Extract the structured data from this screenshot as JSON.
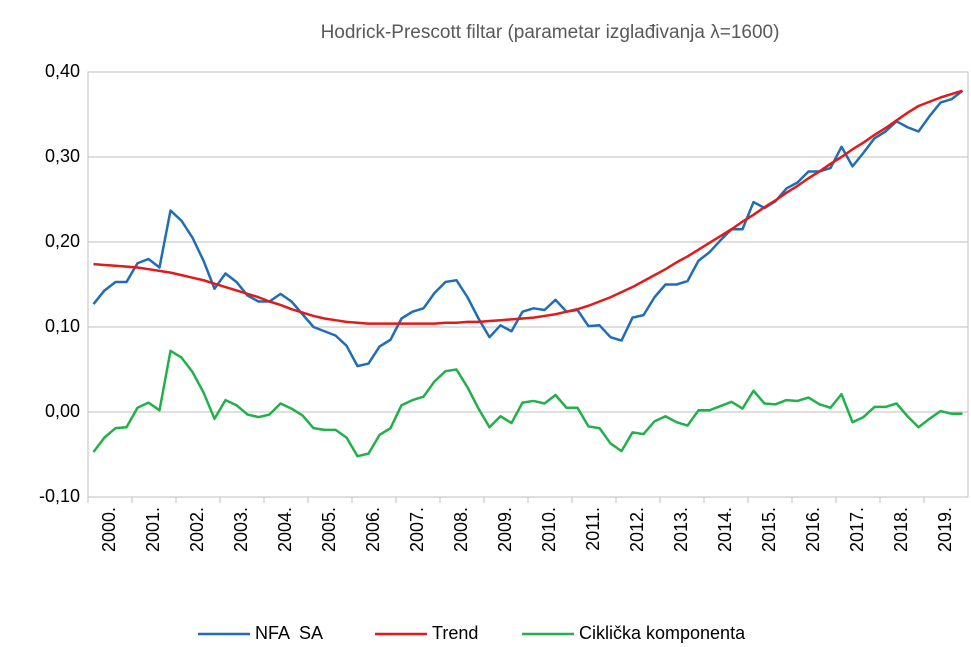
{
  "chart_data": {
    "type": "line",
    "title": "Hodrick-Prescott filtar (parametar izglađivanja λ=1600)",
    "categories": [
      "2000.",
      null,
      null,
      null,
      "2001.",
      null,
      null,
      null,
      "2002.",
      null,
      null,
      null,
      "2003.",
      null,
      null,
      null,
      "2004.",
      null,
      null,
      null,
      "2005.",
      null,
      null,
      null,
      "2006.",
      null,
      null,
      null,
      "2007.",
      null,
      null,
      null,
      "2008.",
      null,
      null,
      null,
      "2009.",
      null,
      null,
      null,
      "2010.",
      null,
      null,
      null,
      "2011.",
      null,
      null,
      null,
      "2012.",
      null,
      null,
      null,
      "2013.",
      null,
      null,
      null,
      "2014.",
      null,
      null,
      null,
      "2015.",
      null,
      null,
      null,
      "2016.",
      null,
      null,
      null,
      "2017.",
      null,
      null,
      null,
      "2018.",
      null,
      null,
      null,
      "2019.",
      null,
      null,
      null
    ],
    "series": [
      {
        "name": "NFA  SA",
        "color": "#1f6db5",
        "values": [
          0.127,
          0.143,
          0.153,
          0.153,
          0.175,
          0.18,
          0.17,
          0.237,
          0.225,
          0.205,
          0.178,
          0.145,
          0.163,
          0.153,
          0.137,
          0.13,
          0.13,
          0.139,
          0.13,
          0.115,
          0.1,
          0.095,
          0.09,
          0.078,
          0.054,
          0.057,
          0.077,
          0.085,
          0.11,
          0.118,
          0.122,
          0.14,
          0.153,
          0.155,
          0.135,
          0.11,
          0.088,
          0.102,
          0.095,
          0.118,
          0.122,
          0.12,
          0.132,
          0.118,
          0.12,
          0.101,
          0.102,
          0.088,
          0.084,
          0.111,
          0.114,
          0.135,
          0.15,
          0.15,
          0.154,
          0.178,
          0.188,
          0.202,
          0.215,
          0.215,
          0.247,
          0.24,
          0.248,
          0.263,
          0.27,
          0.283,
          0.283,
          0.287,
          0.312,
          0.289,
          0.305,
          0.322,
          0.33,
          0.342,
          0.335,
          0.33,
          0.348,
          0.364,
          0.368,
          0.378
        ]
      },
      {
        "name": "Trend",
        "color": "#e01b1b",
        "values": [
          0.174,
          0.173,
          0.172,
          0.171,
          0.17,
          0.168,
          0.166,
          0.164,
          0.161,
          0.158,
          0.155,
          0.151,
          0.147,
          0.143,
          0.139,
          0.135,
          0.13,
          0.126,
          0.121,
          0.117,
          0.113,
          0.11,
          0.108,
          0.106,
          0.105,
          0.104,
          0.104,
          0.104,
          0.104,
          0.104,
          0.104,
          0.104,
          0.105,
          0.105,
          0.106,
          0.106,
          0.107,
          0.108,
          0.109,
          0.11,
          0.111,
          0.113,
          0.115,
          0.118,
          0.121,
          0.125,
          0.13,
          0.135,
          0.141,
          0.147,
          0.154,
          0.161,
          0.168,
          0.176,
          0.183,
          0.191,
          0.199,
          0.207,
          0.215,
          0.224,
          0.232,
          0.241,
          0.249,
          0.258,
          0.266,
          0.275,
          0.283,
          0.292,
          0.3,
          0.309,
          0.317,
          0.326,
          0.334,
          0.343,
          0.352,
          0.36,
          0.365,
          0.37,
          0.374,
          0.378
        ]
      },
      {
        "name": "Ciklička komponenta",
        "color": "#22b04b",
        "values": [
          -0.047,
          -0.03,
          -0.019,
          -0.018,
          0.005,
          0.011,
          0.002,
          0.072,
          0.064,
          0.047,
          0.023,
          -0.008,
          0.014,
          0.008,
          -0.003,
          -0.006,
          -0.003,
          0.01,
          0.004,
          -0.004,
          -0.019,
          -0.021,
          -0.021,
          -0.03,
          -0.052,
          -0.049,
          -0.027,
          -0.019,
          0.008,
          0.014,
          0.018,
          0.036,
          0.048,
          0.05,
          0.029,
          0.004,
          -0.018,
          -0.005,
          -0.013,
          0.011,
          0.013,
          0.01,
          0.02,
          0.005,
          0.005,
          -0.017,
          -0.019,
          -0.037,
          -0.046,
          -0.024,
          -0.026,
          -0.011,
          -0.005,
          -0.012,
          -0.016,
          0.002,
          0.002,
          0.007,
          0.012,
          0.004,
          0.025,
          0.01,
          0.009,
          0.014,
          0.013,
          0.017,
          0.009,
          0.005,
          0.021,
          -0.012,
          -0.006,
          0.006,
          0.006,
          0.01,
          -0.005,
          -0.018,
          -0.008,
          0.001,
          -0.002,
          -0.002
        ]
      }
    ],
    "ylim": [
      -0.1,
      0.4
    ],
    "yticks": [
      {
        "value": -0.1,
        "label": "-0,10"
      },
      {
        "value": 0,
        "label": "0,00"
      },
      {
        "value": 0.1,
        "label": "0,10"
      },
      {
        "value": 0.2,
        "label": "0,20"
      },
      {
        "value": 0.3,
        "label": "0,30"
      },
      {
        "value": 0.4,
        "label": "0,40"
      }
    ],
    "grid": true,
    "legend": "bottom"
  }
}
